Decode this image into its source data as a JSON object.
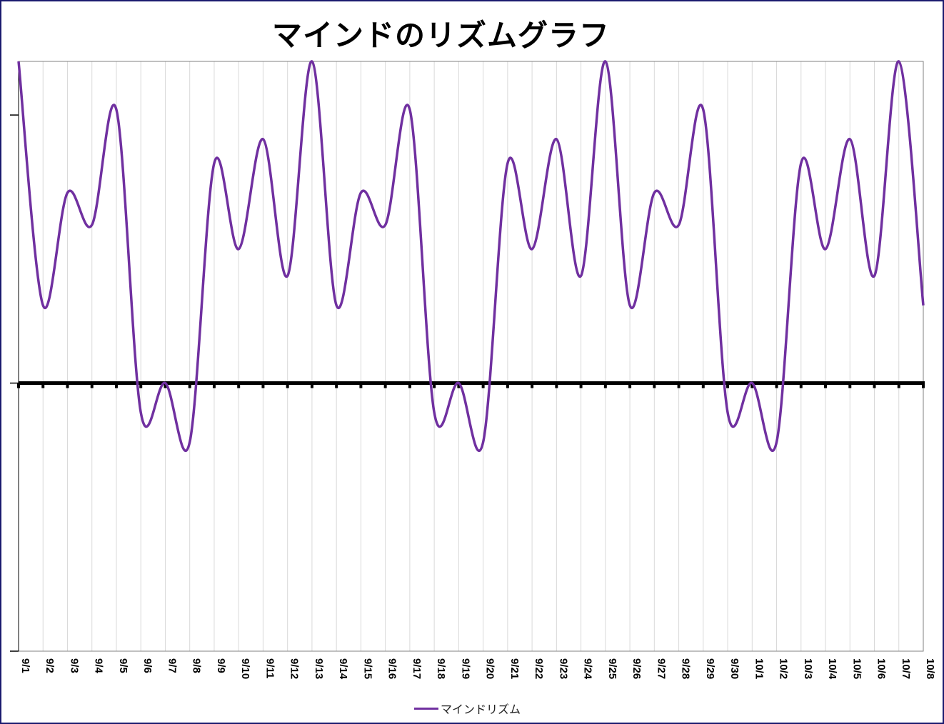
{
  "chart_data": {
    "type": "line",
    "title": "マインドのリズムグラフ",
    "xlabel": "",
    "ylabel": "",
    "categories": [
      "9/1",
      "9/2",
      "9/3",
      "9/4",
      "9/5",
      "9/6",
      "9/7",
      "9/8",
      "9/9",
      "9/10",
      "9/11",
      "9/12",
      "9/13",
      "9/14",
      "9/15",
      "9/16",
      "9/17",
      "9/18",
      "9/19",
      "9/20",
      "9/21",
      "9/22",
      "9/23",
      "9/24",
      "9/25",
      "9/26",
      "9/27",
      "9/28",
      "9/29",
      "9/30",
      "10/1",
      "10/2",
      "10/3",
      "10/4",
      "10/5",
      "10/6",
      "10/7",
      "10/8"
    ],
    "ylim": [
      -100,
      120
    ],
    "y_ticks": [
      -100,
      0,
      100
    ],
    "grid": {
      "vertical": true,
      "horizontal": false
    },
    "legend": "bottom",
    "series": [
      {
        "name": "マインドリズム",
        "color": "#7030a0",
        "smooth": true,
        "values": [
          120,
          29,
          71,
          59,
          102,
          -11,
          0,
          -22,
          82,
          50,
          91,
          40,
          120,
          29,
          71,
          59,
          102,
          -11,
          0,
          -22,
          82,
          50,
          91,
          40,
          120,
          29,
          71,
          59,
          102,
          -11,
          0,
          -22,
          82,
          50,
          91,
          40,
          120,
          29
        ]
      }
    ],
    "zero_line": {
      "color": "#000000"
    }
  }
}
